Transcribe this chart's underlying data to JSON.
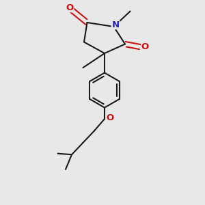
{
  "bg_color": "#e8e8e8",
  "bond_color": "#1a1a1a",
  "N_color": "#2222bb",
  "O_color": "#cc1111",
  "lw": 1.5,
  "figsize": [
    3.0,
    3.0
  ],
  "dpi": 100,
  "xlim": [
    -1,
    9
  ],
  "ylim": [
    -1,
    9
  ]
}
